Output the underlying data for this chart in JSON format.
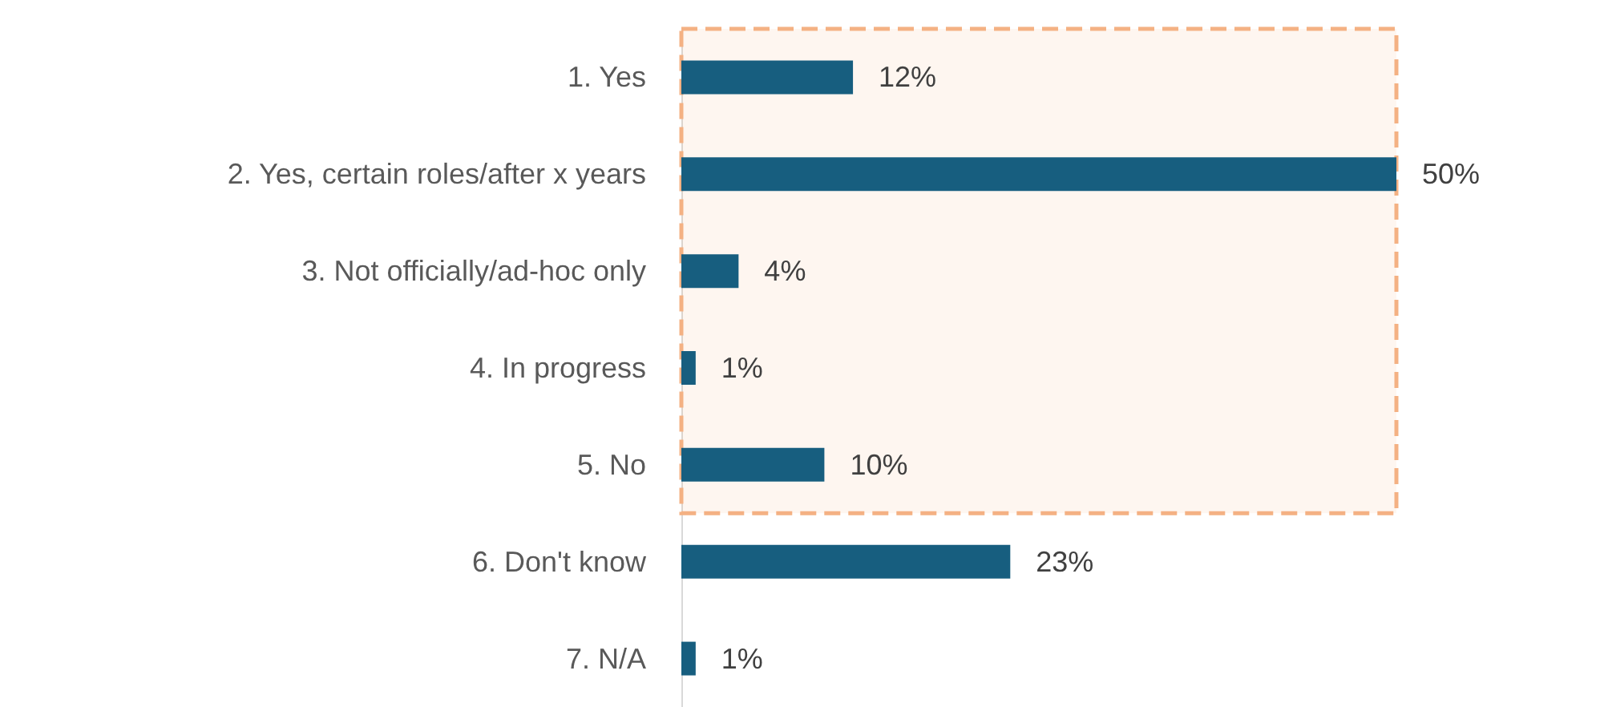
{
  "chart_data": {
    "type": "bar",
    "orientation": "horizontal",
    "categories": [
      "1. Yes",
      "2. Yes, certain roles/after x years",
      "3. Not officially/ad-hoc only",
      "4. In progress",
      "5. No",
      "6. Don't know",
      "7. N/A"
    ],
    "values": [
      12,
      50,
      4,
      1,
      10,
      23,
      1
    ],
    "color": "#175e7f",
    "value_labels": [
      "12%",
      "50%",
      "4%",
      "1%",
      "10%",
      "23%",
      "1%"
    ],
    "bands": [
      {
        "axis": "y",
        "from": "1. Yes",
        "to": "5. No",
        "color": "#f4b183"
      }
    ]
  }
}
